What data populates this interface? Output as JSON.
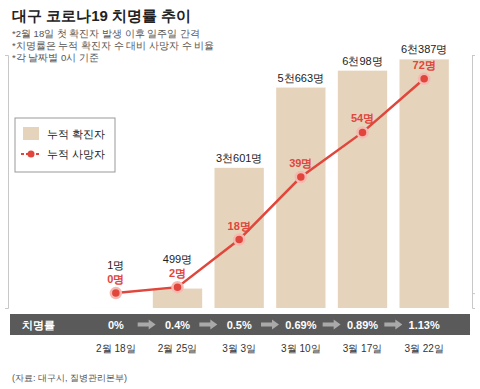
{
  "chart_data": {
    "type": "bar",
    "title": "대구 코로나19 치명률 추이",
    "notes": [
      "*2월 18일 첫 확진자 발생 이후 일주일 간격",
      "*치명률은 누적 확진자 수 대비 사망자 수 비율",
      "*각 날짜별 0시 기준"
    ],
    "source": "(자료: 대구시, 질병관리본부)",
    "categories": [
      "2월 18일",
      "2월 25일",
      "3월 3일",
      "3월 10일",
      "3월 17일",
      "3월 22일"
    ],
    "series": [
      {
        "name": "누적 확진자",
        "type": "bar",
        "color": "#e6d3bb",
        "values": [
          1,
          499,
          3601,
          5663,
          6098,
          6387
        ],
        "value_labels": [
          "1명",
          "499명",
          "3천601명",
          "5천663명",
          "6천98명",
          "6천387명"
        ]
      },
      {
        "name": "누적 사망자",
        "type": "line",
        "axis": "y2",
        "color": "#e0463c",
        "marker": "circle",
        "values": [
          0,
          2,
          18,
          39,
          54,
          72
        ],
        "value_labels": [
          "0명",
          "2명",
          "18명",
          "39명",
          "54명",
          "72명"
        ]
      }
    ],
    "fatality_rate": {
      "label": "치명률",
      "values": [
        0,
        0.4,
        0.5,
        0.69,
        0.89,
        1.13
      ],
      "value_labels": [
        "0%",
        "0.4%",
        "0.5%",
        "0.69%",
        "0.89%",
        "1.13%"
      ]
    },
    "ylim": [
      0,
      6500
    ],
    "yticks": [
      0,
      6500
    ],
    "y2lim": [
      -5,
      80
    ],
    "y2ticks": [
      0,
      80
    ],
    "data_labels": true,
    "tick_labels": false,
    "legend": "upper left"
  }
}
